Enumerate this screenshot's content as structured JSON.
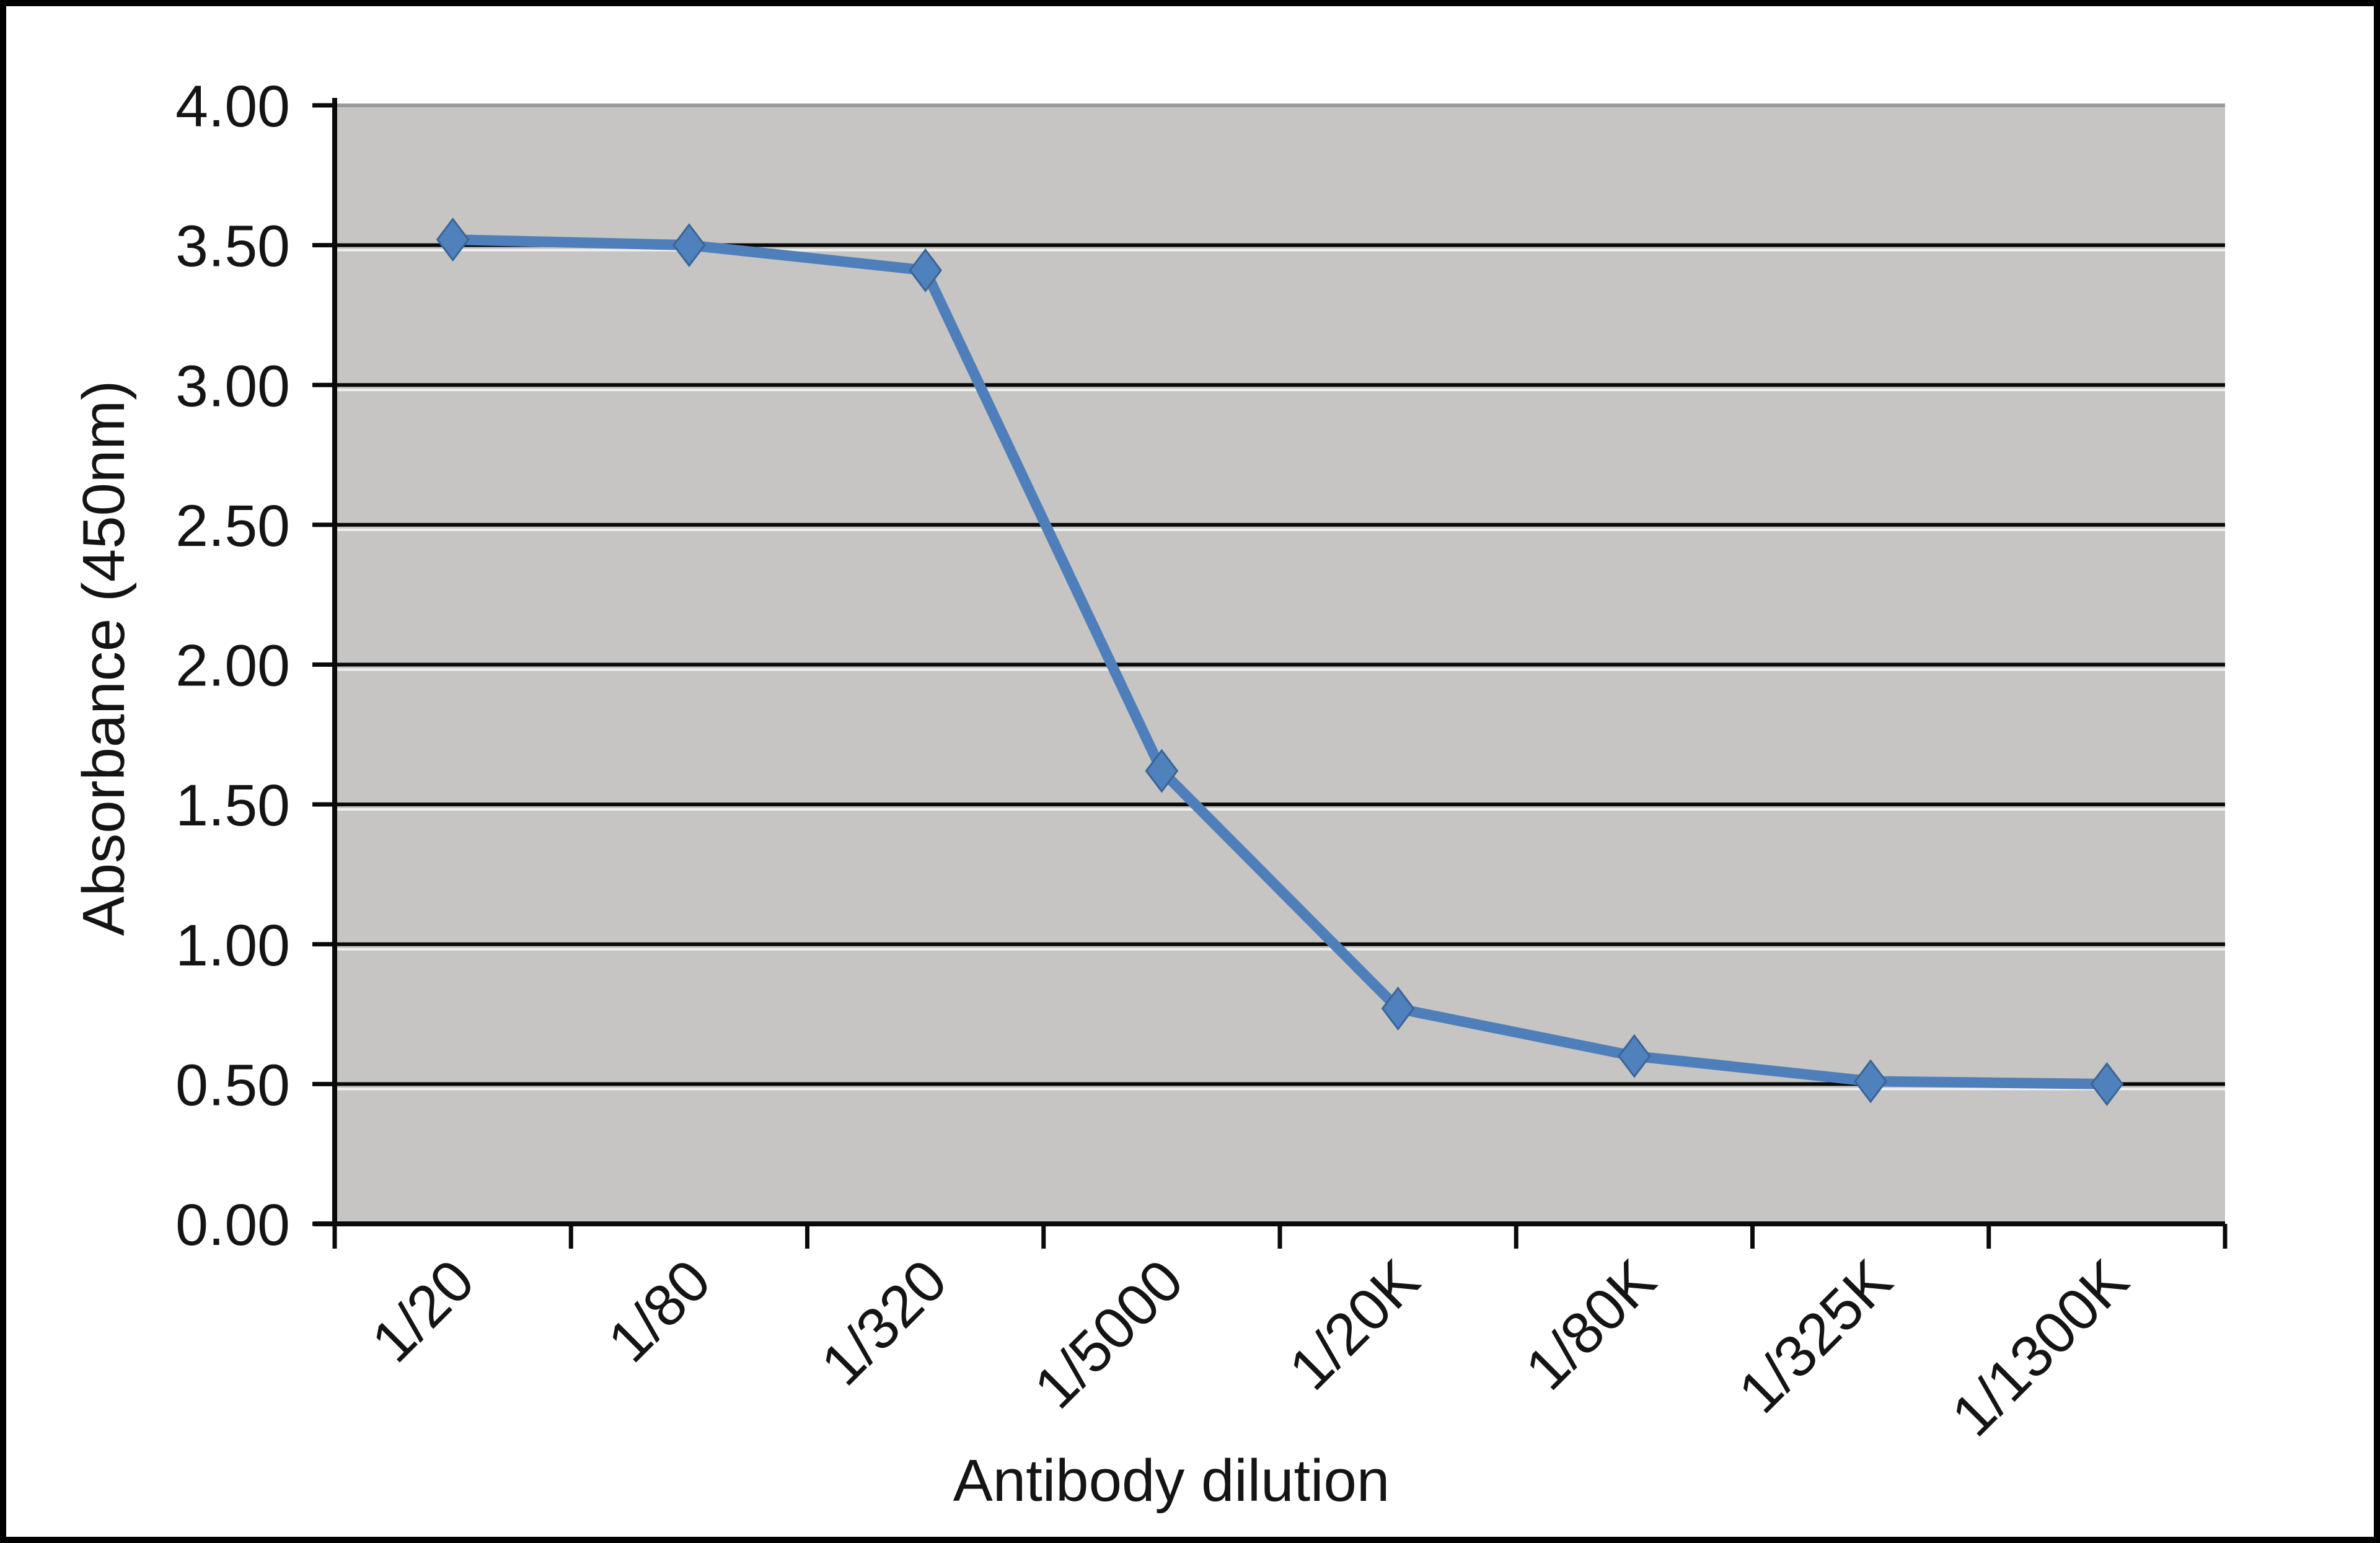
{
  "figure": {
    "background": "#ffffff",
    "border_color": "#000000"
  },
  "chart_data": {
    "type": "line",
    "title": "",
    "xlabel": "Antibody dilution",
    "ylabel": "Absorbance (450nm)",
    "categories": [
      "1/20",
      "1/80",
      "1/320",
      "1/5000",
      "1/20K",
      "1/80K",
      "1/325K",
      "1/1300K"
    ],
    "series": [
      {
        "name": "Absorbance (450nm)",
        "values": [
          3.52,
          3.5,
          3.41,
          1.62,
          0.77,
          0.6,
          0.51,
          0.5
        ]
      }
    ],
    "ylim": [
      0,
      4
    ],
    "ytick_step": 0.5,
    "y_tick_labels": [
      "0.00",
      "0.50",
      "1.00",
      "1.50",
      "2.00",
      "2.50",
      "3.00",
      "3.50",
      "4.00"
    ],
    "x_tick_label_rotation_deg": 45,
    "grid": "horizontal",
    "legend": "none",
    "marker": "diamond",
    "colors": {
      "line": "#4f7fba",
      "marker_fill": "#4f81bd",
      "marker_edge": "#3a6496",
      "plot_background": "#c6c5c3",
      "gridline": "#0a0a0a",
      "gridline_highlight": "#ffffff",
      "top_gridline": "#9a9a9a",
      "axis": "#0a0a0a",
      "text": "#141414"
    }
  }
}
